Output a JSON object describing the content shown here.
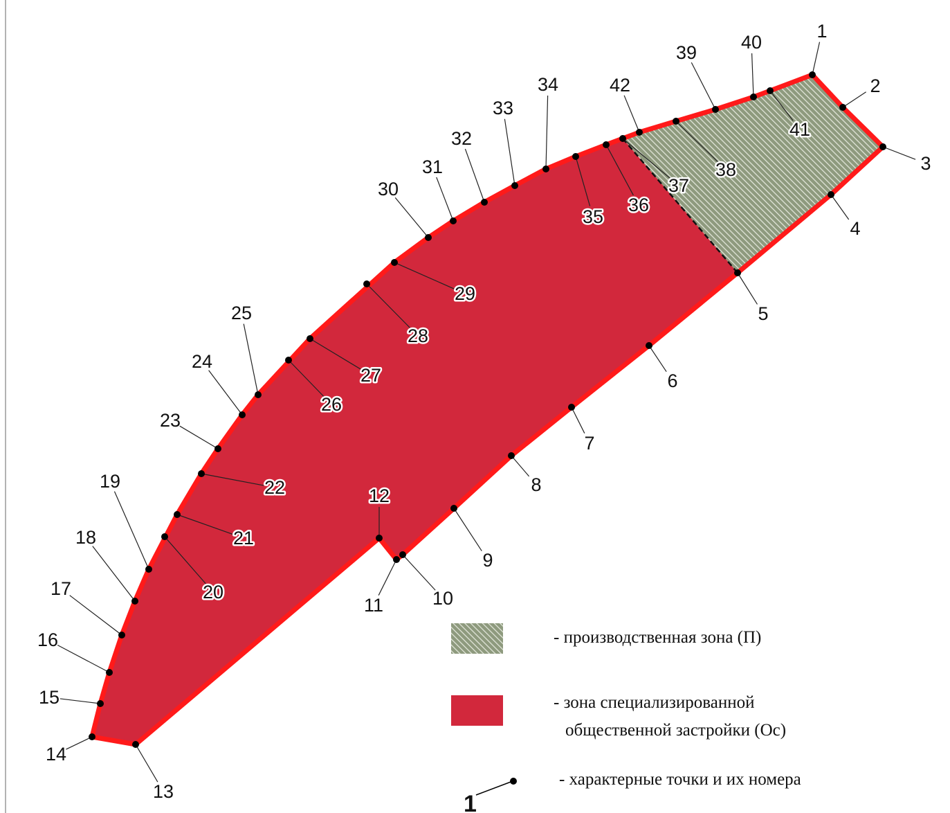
{
  "colors": {
    "public_zone_fill": "#d2283c",
    "boundary": "#ff1a1a",
    "industrial_hatch_bg": "#8e9a7e",
    "industrial_hatch_line": "#e4e8dc",
    "point": "#000000"
  },
  "map": {
    "points": [
      {
        "num": "1"
      },
      {
        "num": "2"
      },
      {
        "num": "3"
      },
      {
        "num": "4"
      },
      {
        "num": "5"
      },
      {
        "num": "6"
      },
      {
        "num": "7"
      },
      {
        "num": "8"
      },
      {
        "num": "9"
      },
      {
        "num": "10"
      },
      {
        "num": "11"
      },
      {
        "num": "12"
      },
      {
        "num": "13"
      },
      {
        "num": "14"
      },
      {
        "num": "15"
      },
      {
        "num": "16"
      },
      {
        "num": "17"
      },
      {
        "num": "18"
      },
      {
        "num": "19"
      },
      {
        "num": "20"
      },
      {
        "num": "21"
      },
      {
        "num": "22"
      },
      {
        "num": "23"
      },
      {
        "num": "24"
      },
      {
        "num": "25"
      },
      {
        "num": "26"
      },
      {
        "num": "27"
      },
      {
        "num": "28"
      },
      {
        "num": "29"
      },
      {
        "num": "30"
      },
      {
        "num": "31"
      },
      {
        "num": "32"
      },
      {
        "num": "33"
      },
      {
        "num": "34"
      },
      {
        "num": "35"
      },
      {
        "num": "36"
      },
      {
        "num": "37"
      },
      {
        "num": "38"
      },
      {
        "num": "39"
      },
      {
        "num": "40"
      },
      {
        "num": "41"
      },
      {
        "num": "42"
      }
    ]
  },
  "legend": {
    "industrial_label": "- производственная зона (П)",
    "public_label_line1": "- зона специализированной",
    "public_label_line2": "общественной застройки (Ос)",
    "points_label": "- характерные точки и их номера",
    "points_sample_num": "1"
  }
}
